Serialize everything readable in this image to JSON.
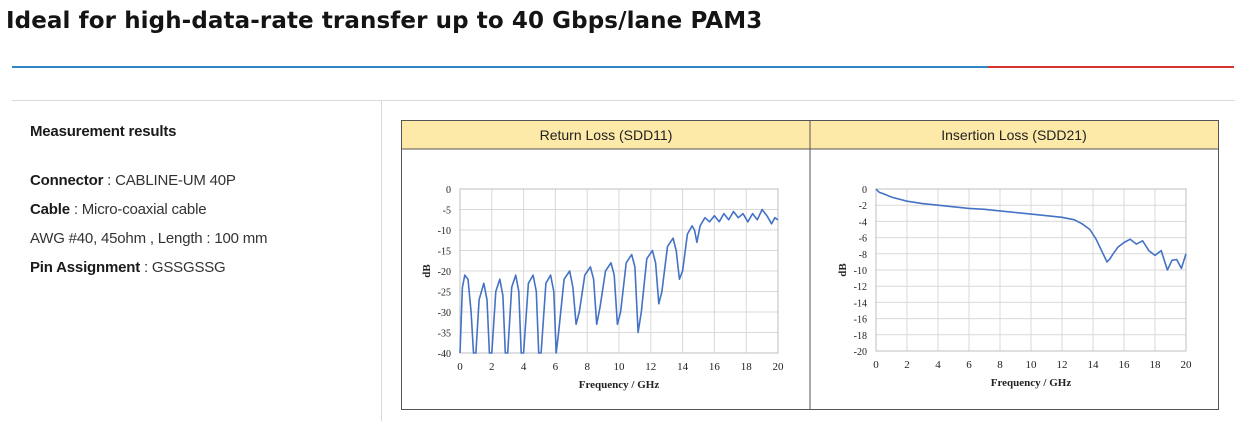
{
  "headline": "Ideal for high-data-rate transfer up to 40 Gbps/lane PAM3",
  "colors": {
    "accent_blue": "#2f86c7",
    "accent_red": "#d8332c",
    "curve": "#4472c4",
    "header_bg": "#fde9a8"
  },
  "measurement": {
    "title": "Measurement results",
    "specs": [
      {
        "key": "Connector",
        "sep": " : ",
        "value": "CABLINE-UM 40P"
      },
      {
        "key": "Cable",
        "sep": " : ",
        "value": "Micro-coaxial cable"
      },
      {
        "key": "",
        "sep": "",
        "value": "AWG #40, 45ohm , Length : 100 mm"
      },
      {
        "key": "Pin Assignment",
        "sep": " : ",
        "value": "GSSGSSG"
      }
    ]
  },
  "chart_data": [
    {
      "type": "line",
      "title": "Return Loss (SDD11)",
      "xlabel": "Frequency / GHz",
      "ylabel": "dB",
      "xlim": [
        0,
        20
      ],
      "ylim": [
        -40,
        0
      ],
      "xticks": [
        0,
        2,
        4,
        6,
        8,
        10,
        12,
        14,
        16,
        18,
        20
      ],
      "yticks": [
        0,
        -5,
        -10,
        -15,
        -20,
        -25,
        -30,
        -35,
        -40
      ],
      "grid": true,
      "series": [
        {
          "x": [
            0,
            0.15,
            0.3,
            0.5,
            0.7,
            0.85,
            1.0,
            1.2,
            1.5,
            1.7,
            1.85,
            2.0,
            2.25,
            2.5,
            2.7,
            2.85,
            3.0,
            3.25,
            3.5,
            3.7,
            3.85,
            4.0,
            4.3,
            4.6,
            4.8,
            4.95,
            5.1,
            5.4,
            5.7,
            5.9,
            6.05,
            6.2,
            6.55,
            6.9,
            7.1,
            7.3,
            7.5,
            7.85,
            8.2,
            8.4,
            8.6,
            8.8,
            9.15,
            9.5,
            9.7,
            9.9,
            10.1,
            10.45,
            10.8,
            11.0,
            11.2,
            11.4,
            11.75,
            12.1,
            12.3,
            12.5,
            12.7,
            13.05,
            13.4,
            13.6,
            13.8,
            14.0,
            14.3,
            14.6,
            14.75,
            14.9,
            15.1,
            15.4,
            15.7,
            16.0,
            16.3,
            16.6,
            16.9,
            17.2,
            17.5,
            17.8,
            18.1,
            18.4,
            18.7,
            19.0,
            19.3,
            19.6,
            19.8,
            20.0
          ],
          "y": [
            -40,
            -24,
            -21,
            -22,
            -30,
            -40,
            -40,
            -27,
            -23,
            -27,
            -40,
            -40,
            -25,
            -22,
            -26,
            -40,
            -40,
            -24,
            -21,
            -25,
            -40,
            -40,
            -23,
            -21,
            -25,
            -40,
            -40,
            -23,
            -21,
            -25,
            -40,
            -35,
            -22,
            -20,
            -24,
            -33,
            -30,
            -21,
            -19,
            -22,
            -33,
            -29,
            -20,
            -18,
            -21,
            -33,
            -30,
            -18,
            -16,
            -19,
            -35,
            -30,
            -17,
            -15,
            -18,
            -28,
            -25,
            -14,
            -12,
            -15,
            -22,
            -20,
            -11,
            -9,
            -10,
            -13,
            -9,
            -7,
            -8,
            -6.5,
            -8,
            -6,
            -7.5,
            -5.5,
            -7,
            -6,
            -8,
            -6,
            -7.5,
            -5,
            -6.5,
            -8.5,
            -7,
            -7.5
          ]
        }
      ]
    },
    {
      "type": "line",
      "title": "Insertion Loss (SDD21)",
      "xlabel": "Frequency / GHz",
      "ylabel": "dB",
      "xlim": [
        0,
        20
      ],
      "ylim": [
        -20,
        0
      ],
      "xticks": [
        0,
        2,
        4,
        6,
        8,
        10,
        12,
        14,
        16,
        18,
        20
      ],
      "yticks": [
        0,
        -2,
        -4,
        -6,
        -8,
        -10,
        -12,
        -14,
        -16,
        -18,
        -20
      ],
      "grid": true,
      "series": [
        {
          "x": [
            0,
            0.2,
            0.5,
            1,
            2,
            3,
            4,
            5,
            6,
            7,
            8,
            9,
            10,
            11,
            12,
            12.8,
            13.3,
            13.8,
            14.2,
            14.6,
            14.9,
            15.1,
            15.3,
            15.6,
            16.0,
            16.4,
            16.8,
            17.2,
            17.6,
            18.0,
            18.4,
            18.8,
            19.1,
            19.4,
            19.7,
            20.0
          ],
          "y": [
            0,
            -0.4,
            -0.6,
            -1.0,
            -1.5,
            -1.8,
            -2.0,
            -2.2,
            -2.4,
            -2.5,
            -2.7,
            -2.9,
            -3.1,
            -3.3,
            -3.5,
            -3.8,
            -4.3,
            -5.0,
            -6.2,
            -7.8,
            -9.0,
            -8.6,
            -8.0,
            -7.2,
            -6.6,
            -6.2,
            -6.8,
            -6.4,
            -7.6,
            -8.2,
            -7.6,
            -10.0,
            -8.8,
            -8.7,
            -9.8,
            -8.0
          ]
        }
      ]
    }
  ]
}
